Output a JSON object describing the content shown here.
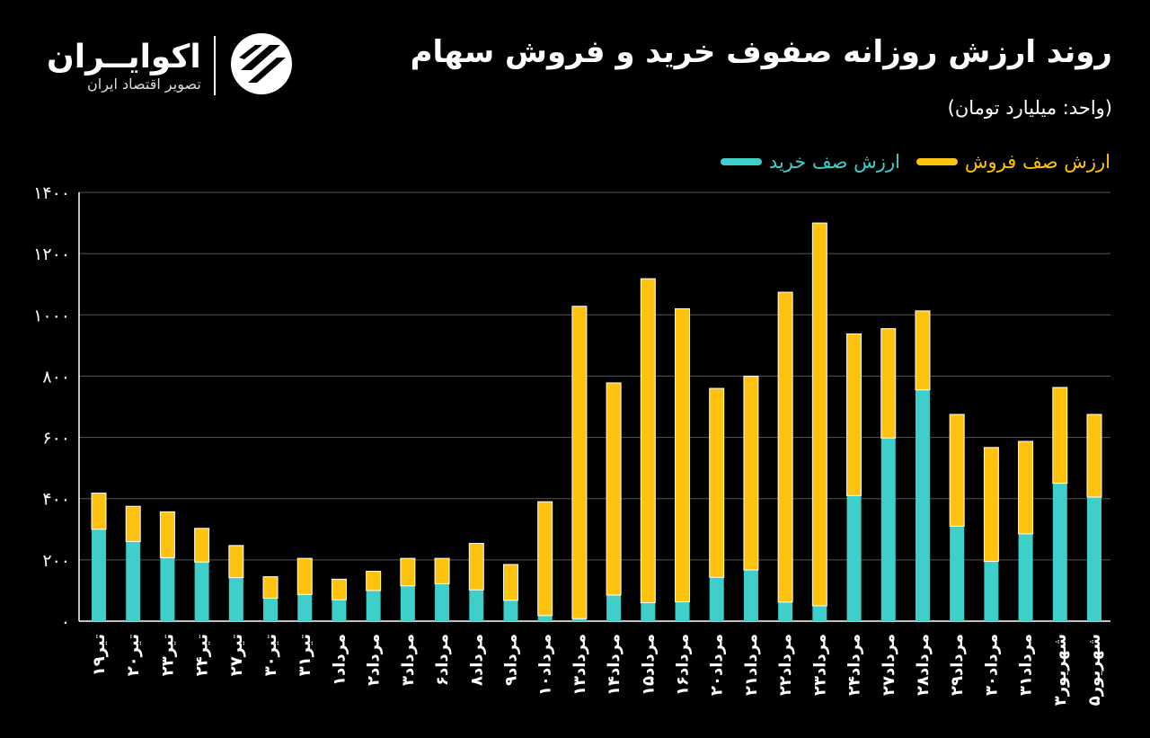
{
  "title": "روند ارزش روزانه صفوف خرید و فروش سهام",
  "subtitle": "(واحد: میلیارد تومان)",
  "logo": {
    "name": "اکوایــران",
    "tagline": "تصویر اقتصاد ایران"
  },
  "legend": {
    "buy": "ارزش صف خرید",
    "sell": "ارزش صف فروش"
  },
  "colors": {
    "buy": "#3ECFCB",
    "sell": "#FFC20E",
    "background": "#000000",
    "grid": "#555555",
    "text": "#ffffff"
  },
  "chart_data": {
    "type": "bar",
    "stacked": true,
    "ylim": [
      0,
      1400
    ],
    "yticks": [
      "۰",
      "۲۰۰",
      "۴۰۰",
      "۶۰۰",
      "۸۰۰",
      "۱۰۰۰",
      "۱۲۰۰",
      "۱۴۰۰"
    ],
    "ytick_values": [
      0,
      200,
      400,
      600,
      800,
      1000,
      1200,
      1400
    ],
    "grid": true,
    "categories": [
      "تیر۱۹",
      "تیر۲۰",
      "تیر۲۳",
      "تیر۲۴",
      "تیر۲۷",
      "تیر۳۰",
      "تیر۳۱",
      "مرداد۱",
      "مرداد۲",
      "مرداد۳",
      "مرداد۶",
      "مرداد۸",
      "مرداد۹",
      "مرداد۱۰",
      "مرداد۱۳",
      "مرداد۱۴",
      "مرداد۱۵",
      "مرداد۱۶",
      "مرداد۲۰",
      "مرداد۲۱",
      "مرداد۲۲",
      "مرداد۲۳",
      "مرداد۲۴",
      "مرداد۲۷",
      "مرداد۲۸",
      "مرداد۲۹",
      "مرداد۳۰",
      "مرداد۳۱",
      "شهریور۳",
      "شهریور۵"
    ],
    "series": [
      {
        "name": "ارزش صف خرید",
        "values": [
          300,
          260,
          207,
          193,
          142,
          75,
          87,
          70,
          100,
          115,
          122,
          102,
          68,
          18,
          8,
          85,
          60,
          63,
          143,
          167,
          62,
          50,
          410,
          598,
          755,
          310,
          195,
          285,
          450,
          405
        ]
      },
      {
        "name": "ارزش صف فروش",
        "values": [
          118,
          115,
          150,
          110,
          105,
          70,
          118,
          67,
          63,
          90,
          83,
          152,
          117,
          372,
          1020,
          693,
          1058,
          957,
          617,
          633,
          1012,
          1250,
          528,
          357,
          258,
          365,
          372,
          302,
          313,
          270
        ]
      }
    ]
  }
}
